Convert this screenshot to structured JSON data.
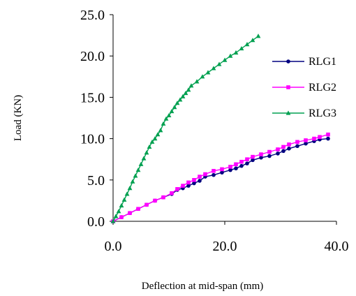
{
  "chart_data": {
    "type": "line",
    "title": "",
    "xlabel": "Deflection at mid-span (mm)",
    "ylabel": "Load (KN)",
    "xlim": [
      0,
      40
    ],
    "ylim": [
      0,
      25
    ],
    "xticks": [
      0,
      20,
      40
    ],
    "xtick_labels": [
      "0.0",
      "20.0",
      "40.0"
    ],
    "yticks": [
      0,
      5,
      10,
      15,
      20,
      25
    ],
    "ytick_labels": [
      "0.0",
      "5.0",
      "10.0",
      "15.0",
      "20.0",
      "25.0"
    ],
    "grid": false,
    "legend_position": "right",
    "series": [
      {
        "name": "RLG1",
        "color": "#000080",
        "marker": "circle",
        "x": [
          0,
          1.5,
          3,
          4.5,
          6,
          7.5,
          9,
          10.5,
          11.5,
          12.5,
          13.5,
          14.5,
          15.5,
          16.5,
          18,
          19.5,
          21,
          22,
          23,
          24,
          25,
          26.5,
          28,
          29.5,
          30.5,
          31.5,
          33,
          34.5,
          36,
          37,
          38.5
        ],
        "y": [
          0,
          0.5,
          1.0,
          1.5,
          2.0,
          2.5,
          2.9,
          3.3,
          3.8,
          4.0,
          4.3,
          4.6,
          4.9,
          5.4,
          5.6,
          5.9,
          6.2,
          6.4,
          6.7,
          7.0,
          7.4,
          7.7,
          7.9,
          8.2,
          8.5,
          8.8,
          9.1,
          9.4,
          9.7,
          9.9,
          10.0
        ]
      },
      {
        "name": "RLG2",
        "color": "#ff00ff",
        "marker": "square",
        "x": [
          0,
          1.5,
          3,
          4.5,
          6,
          7.5,
          9,
          10.5,
          11.5,
          12.5,
          13.5,
          14.5,
          15.5,
          16.5,
          18,
          19.5,
          21,
          22,
          23,
          24,
          25,
          26.5,
          28,
          29.5,
          30.5,
          31.5,
          33,
          34.5,
          36,
          37,
          38.5
        ],
        "y": [
          0,
          0.5,
          1.0,
          1.5,
          2.0,
          2.5,
          2.9,
          3.4,
          3.9,
          4.3,
          4.7,
          5.0,
          5.4,
          5.7,
          6.1,
          6.3,
          6.6,
          6.9,
          7.2,
          7.5,
          7.8,
          8.1,
          8.4,
          8.7,
          9.0,
          9.3,
          9.6,
          9.8,
          10.0,
          10.2,
          10.5
        ]
      },
      {
        "name": "RLG3",
        "color": "#00a050",
        "marker": "triangle",
        "x": [
          0,
          0.5,
          1,
          1.5,
          2,
          2.5,
          3,
          3.5,
          4,
          4.5,
          5,
          5.5,
          6,
          6.5,
          7,
          7.5,
          8,
          8.5,
          9,
          9.5,
          10,
          10.5,
          11,
          11.5,
          12,
          12.5,
          13,
          13.5,
          14,
          15,
          16,
          17,
          18,
          19,
          20,
          21,
          22,
          23,
          24,
          25,
          26
        ],
        "y": [
          0,
          0.6,
          1.2,
          1.9,
          2.6,
          3.3,
          4.0,
          4.8,
          5.5,
          6.2,
          6.9,
          7.6,
          8.3,
          9.0,
          9.6,
          10.0,
          10.5,
          11.0,
          11.8,
          12.4,
          12.8,
          13.3,
          13.8,
          14.3,
          14.7,
          15.1,
          15.5,
          15.9,
          16.4,
          16.9,
          17.5,
          18.0,
          18.5,
          19.0,
          19.5,
          20.0,
          20.4,
          20.9,
          21.4,
          21.9,
          22.4
        ]
      }
    ]
  }
}
